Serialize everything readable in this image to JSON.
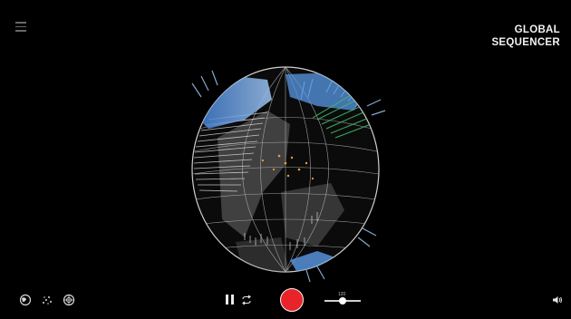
{
  "header": {
    "title_line1": "GLOBAL",
    "title_line2": "SEQUENCER",
    "menu_icon": "menu-icon"
  },
  "visualization": {
    "type": "3d-globe-sequencer",
    "colors": {
      "blue": "#4a8fe0",
      "light_blue": "#9ec6f2",
      "green": "#3fbf6a",
      "orange": "#f0a030",
      "grid": "#bfbfbf",
      "grey_land": "#7a7a7a"
    }
  },
  "controls": {
    "view_icons": [
      "globe-view-icon",
      "scatter-view-icon",
      "target-view-icon"
    ],
    "pause_icon": "pause-icon",
    "loop_icon": "loop-icon",
    "record_icon": "record-icon",
    "record_color": "#e8242a",
    "tempo_value": "120",
    "tempo_level": 0.5,
    "volume_icon": "volume-icon"
  }
}
